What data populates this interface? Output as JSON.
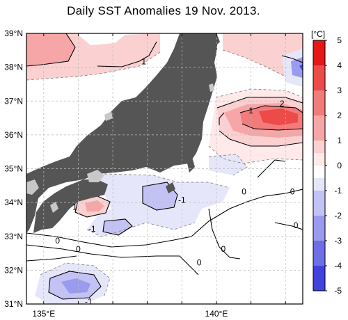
{
  "title": "Daily SST Anomalies 19 Nov. 2013.",
  "map": {
    "lon_range": [
      134.5,
      142.5
    ],
    "lat_range": [
      31,
      39
    ],
    "lat_ticks": [
      "39°N",
      "38°N",
      "37°N",
      "36°N",
      "35°N",
      "34°N",
      "33°N",
      "32°N",
      "31°N"
    ],
    "lon_ticks": [
      {
        "label": "135°E",
        "lon": 135
      },
      {
        "label": "140°E",
        "lon": 140
      }
    ],
    "land_color": "#555555",
    "lake_color": "#c8c8c8",
    "grid": true
  },
  "contour_labels": [
    {
      "text": "1",
      "lon": 137.9,
      "lat": 38.15
    },
    {
      "text": "1",
      "lon": 141.0,
      "lat": 36.7
    },
    {
      "text": "2",
      "lon": 141.9,
      "lat": 36.9
    },
    {
      "text": "0",
      "lon": 140.8,
      "lat": 34.3
    },
    {
      "text": "0",
      "lon": 142.2,
      "lat": 34.3
    },
    {
      "text": "-1",
      "lon": 139.0,
      "lat": 34.05
    },
    {
      "text": "-1",
      "lon": 136.4,
      "lat": 33.2
    },
    {
      "text": "1",
      "lon": 135.9,
      "lat": 33.85
    },
    {
      "text": "0",
      "lon": 135.4,
      "lat": 32.85
    },
    {
      "text": "0",
      "lon": 136.0,
      "lat": 32.6
    },
    {
      "text": "0",
      "lon": 140.2,
      "lat": 32.6
    },
    {
      "text": "0",
      "lon": 139.5,
      "lat": 32.2
    },
    {
      "text": "0",
      "lon": 142.3,
      "lat": 33.3
    },
    {
      "text": "-1",
      "lon": 136.3,
      "lat": 31.05
    }
  ],
  "colorbar": {
    "unit": "[°C]",
    "levels": [
      "5",
      "4",
      "3",
      "2",
      "1",
      "0",
      "-1",
      "-2",
      "-3",
      "-4",
      "-5"
    ],
    "colors": [
      "#e61717",
      "#ed4a4a",
      "#f27b7b",
      "#f6a6a6",
      "#fad0d0",
      "#ffe9e9",
      "#ffffff",
      "#e6e6fb",
      "#c2c2f5",
      "#9a9aee",
      "#6e6ee6",
      "#4242de",
      "#1414d6"
    ]
  }
}
